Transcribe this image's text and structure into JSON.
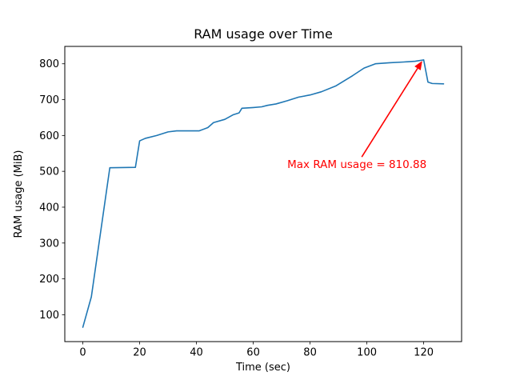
{
  "figure": {
    "background": "#ffffff"
  },
  "colors": {
    "line": "#1f77b4",
    "annotation": "#ff0000",
    "axis": "#000000",
    "text": "#000000",
    "background": "#ffffff"
  },
  "chart_data": {
    "type": "line",
    "title": "RAM usage over Time",
    "xlabel": "Time (sec)",
    "ylabel": "RAM usage (MiB)",
    "xlim": [
      -6.35,
      133.35
    ],
    "ylim": [
      25,
      848.5
    ],
    "xticks": [
      0,
      20,
      40,
      60,
      80,
      100,
      120
    ],
    "yticks": [
      100,
      200,
      300,
      400,
      500,
      600,
      700,
      800
    ],
    "grid": false,
    "legend": "none",
    "series": [
      {
        "name": "RAM usage",
        "color": "#1f77b4",
        "x": [
          0,
          3,
          9.5,
          18.5,
          20,
          22,
          26,
          30,
          33,
          41,
          44,
          46,
          50,
          53,
          55,
          56,
          60,
          63,
          65,
          68,
          72,
          76,
          80,
          84,
          89,
          95,
          99,
          103,
          108,
          113,
          117,
          120,
          121.5,
          123,
          127
        ],
        "y": [
          65,
          150,
          510,
          511,
          585,
          592,
          600,
          610,
          613,
          613,
          622,
          636,
          645,
          658,
          663,
          676,
          678,
          680,
          684,
          688,
          697,
          707,
          713,
          722,
          738,
          767,
          788,
          800,
          803,
          805,
          807,
          810.88,
          749,
          745,
          744
        ]
      }
    ],
    "max_value": 810.88,
    "annotation": {
      "text": "Max RAM usage = 810.88",
      "color": "#ff0000",
      "text_xy": [
        96.5,
        519
      ],
      "arrow_from": [
        98.2,
        540
      ],
      "arrow_to": [
        119.5,
        808
      ]
    }
  }
}
